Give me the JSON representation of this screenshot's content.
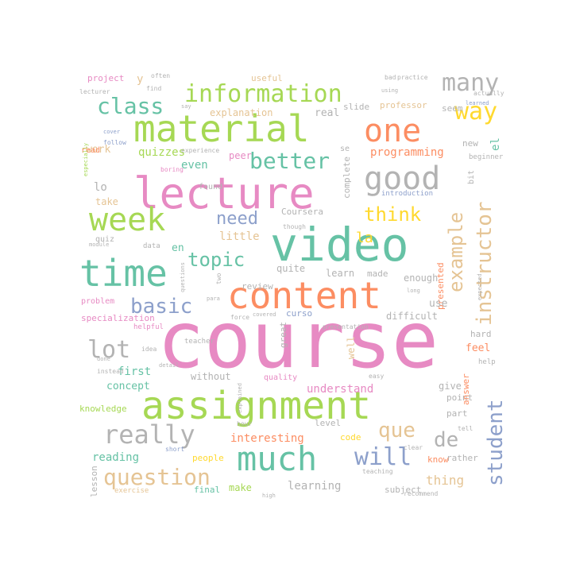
{
  "palette": [
    "#66c2a5",
    "#fc8d62",
    "#8da0cb",
    "#e78ac3",
    "#a6d854",
    "#ffd92f",
    "#e5c494",
    "#b3b3b3"
  ],
  "words": [
    {
      "text": "course",
      "color": "#e78ac3"
    },
    {
      "text": "video",
      "color": "#66c2a5"
    },
    {
      "text": "lecture",
      "color": "#e78ac3"
    },
    {
      "text": "assignment",
      "color": "#a6d854"
    },
    {
      "text": "material",
      "color": "#a6d854"
    },
    {
      "text": "content",
      "color": "#fc8d62"
    },
    {
      "text": "time",
      "color": "#66c2a5"
    },
    {
      "text": "week",
      "color": "#a6d854"
    },
    {
      "text": "much",
      "color": "#66c2a5"
    },
    {
      "text": "one",
      "color": "#fc8d62"
    },
    {
      "text": "good",
      "color": "#b3b3b3"
    },
    {
      "text": "information",
      "color": "#a6d854"
    },
    {
      "text": "really",
      "color": "#b3b3b3"
    },
    {
      "text": "instructor",
      "color": "#e5c494"
    },
    {
      "text": "student",
      "color": "#8da0cb"
    },
    {
      "text": "class",
      "color": "#66c2a5"
    },
    {
      "text": "better",
      "color": "#66c2a5"
    },
    {
      "text": "example",
      "color": "#e5c494"
    },
    {
      "text": "question",
      "color": "#e5c494"
    },
    {
      "text": "many",
      "color": "#b3b3b3"
    },
    {
      "text": "way",
      "color": "#ffd92f"
    },
    {
      "text": "think",
      "color": "#ffd92f"
    },
    {
      "text": "need",
      "color": "#8da0cb"
    },
    {
      "text": "topic",
      "color": "#66c2a5"
    },
    {
      "text": "basic",
      "color": "#8da0cb"
    },
    {
      "text": "lot",
      "color": "#b3b3b3"
    },
    {
      "text": "will",
      "color": "#8da0cb"
    },
    {
      "text": "que",
      "color": "#e5c494"
    },
    {
      "text": "de",
      "color": "#b3b3b3"
    },
    {
      "text": "programming",
      "color": "#fc8d62"
    },
    {
      "text": "quizzes",
      "color": "#a6d854"
    },
    {
      "text": "even",
      "color": "#66c2a5"
    },
    {
      "text": "work",
      "color": "#e5c494"
    },
    {
      "text": "explanation",
      "color": "#e5c494"
    },
    {
      "text": "professor",
      "color": "#e5c494"
    },
    {
      "text": "project",
      "color": "#e78ac3"
    },
    {
      "text": "useful",
      "color": "#e5c494"
    },
    {
      "text": "real",
      "color": "#b3b3b3"
    },
    {
      "text": "slide",
      "color": "#b3b3b3"
    },
    {
      "text": "seem",
      "color": "#b3b3b3"
    },
    {
      "text": "new",
      "color": "#b3b3b3"
    },
    {
      "text": "el",
      "color": "#66c2a5"
    },
    {
      "text": "read",
      "color": "#fc8d62"
    },
    {
      "text": "peer",
      "color": "#e78ac3"
    },
    {
      "text": "complete",
      "color": "#b3b3b3"
    },
    {
      "text": "la",
      "color": "#ffd92f"
    },
    {
      "text": "lo",
      "color": "#b3b3b3"
    },
    {
      "text": "take",
      "color": "#e5c494"
    },
    {
      "text": "en",
      "color": "#66c2a5"
    },
    {
      "text": "little",
      "color": "#e5c494"
    },
    {
      "text": "quite",
      "color": "#b3b3b3"
    },
    {
      "text": "review",
      "color": "#b3b3b3"
    },
    {
      "text": "learn",
      "color": "#b3b3b3"
    },
    {
      "text": "made",
      "color": "#b3b3b3"
    },
    {
      "text": "enough",
      "color": "#b3b3b3"
    },
    {
      "text": "presented",
      "color": "#fc8d62"
    },
    {
      "text": "use",
      "color": "#b3b3b3"
    },
    {
      "text": "difficult",
      "color": "#b3b3b3"
    },
    {
      "text": "specialization",
      "color": "#e78ac3"
    },
    {
      "text": "problem",
      "color": "#e78ac3"
    },
    {
      "text": "Coursera",
      "color": "#b3b3b3"
    },
    {
      "text": "curso",
      "color": "#8da0cb"
    },
    {
      "text": "hard",
      "color": "#b3b3b3"
    },
    {
      "text": "feel",
      "color": "#fc8d62"
    },
    {
      "text": "first",
      "color": "#66c2a5"
    },
    {
      "text": "concept",
      "color": "#66c2a5"
    },
    {
      "text": "understand",
      "color": "#e78ac3"
    },
    {
      "text": "quality",
      "color": "#e78ac3"
    },
    {
      "text": "give",
      "color": "#b3b3b3"
    },
    {
      "text": "point",
      "color": "#b3b3b3"
    },
    {
      "text": "without",
      "color": "#b3b3b3"
    },
    {
      "text": "answer",
      "color": "#fc8d62"
    },
    {
      "text": "knowledge",
      "color": "#a6d854"
    },
    {
      "text": "level",
      "color": "#b3b3b3"
    },
    {
      "text": "part",
      "color": "#b3b3b3"
    },
    {
      "text": "interesting",
      "color": "#fc8d62"
    },
    {
      "text": "code",
      "color": "#ffd92f"
    },
    {
      "text": "reading",
      "color": "#66c2a5"
    },
    {
      "text": "people",
      "color": "#ffd92f"
    },
    {
      "text": "rather",
      "color": "#b3b3b3"
    },
    {
      "text": "know",
      "color": "#fc8d62"
    },
    {
      "text": "learning",
      "color": "#b3b3b3"
    },
    {
      "text": "thing",
      "color": "#e5c494"
    },
    {
      "text": "make",
      "color": "#a6d854"
    },
    {
      "text": "final",
      "color": "#66c2a5"
    },
    {
      "text": "subject",
      "color": "#b3b3b3"
    },
    {
      "text": "lesson",
      "color": "#b3b3b3"
    },
    {
      "text": "exercise",
      "color": "#e5c494"
    },
    {
      "text": "data",
      "color": "#b3b3b3"
    },
    {
      "text": "quiz",
      "color": "#b3b3b3"
    },
    {
      "text": "found",
      "color": "#b3b3b3"
    },
    {
      "text": "bit",
      "color": "#b3b3b3"
    },
    {
      "text": "beginner",
      "color": "#b3b3b3"
    },
    {
      "text": "introduction",
      "color": "#8da0cb"
    },
    {
      "text": "boring",
      "color": "#e78ac3"
    },
    {
      "text": "follow",
      "color": "#8da0cb"
    },
    {
      "text": "experience",
      "color": "#b3b3b3"
    },
    {
      "text": "cover",
      "color": "#8da0cb"
    },
    {
      "text": "though",
      "color": "#b3b3b3"
    },
    {
      "text": "y",
      "color": "#e5c494"
    },
    {
      "text": "se",
      "color": "#b3b3b3"
    },
    {
      "text": "great",
      "color": "#b3b3b3"
    },
    {
      "text": "well",
      "color": "#e5c494"
    },
    {
      "text": "helpful",
      "color": "#e78ac3"
    },
    {
      "text": "teacher",
      "color": "#b3b3b3"
    },
    {
      "text": "help",
      "color": "#b3b3b3"
    },
    {
      "text": "instead",
      "color": "#b3b3b3"
    },
    {
      "text": "done",
      "color": "#b3b3b3"
    },
    {
      "text": "idea",
      "color": "#b3b3b3"
    },
    {
      "text": "detail",
      "color": "#b3b3b3"
    },
    {
      "text": "short",
      "color": "#8da0cb"
    },
    {
      "text": "clear",
      "color": "#b3b3b3"
    },
    {
      "text": "teaching",
      "color": "#b3b3b3"
    },
    {
      "text": "recommend",
      "color": "#b3b3b3"
    },
    {
      "text": "high",
      "color": "#b3b3b3"
    },
    {
      "text": "para",
      "color": "#b3b3b3"
    },
    {
      "text": "often",
      "color": "#b3b3b3"
    },
    {
      "text": "practice",
      "color": "#b3b3b3"
    },
    {
      "text": "actually",
      "color": "#b3b3b3"
    },
    {
      "text": "learned",
      "color": "#8da0cb"
    },
    {
      "text": "lecturer",
      "color": "#b3b3b3"
    },
    {
      "text": "using",
      "color": "#b3b3b3"
    },
    {
      "text": "bad",
      "color": "#b3b3b3"
    },
    {
      "text": "find",
      "color": "#b3b3b3"
    },
    {
      "text": "say",
      "color": "#b3b3b3"
    },
    {
      "text": "especially",
      "color": "#a6d854"
    },
    {
      "text": "module",
      "color": "#b3b3b3"
    },
    {
      "text": "covered",
      "color": "#b3b3b3"
    },
    {
      "text": "presentation",
      "color": "#b3b3b3"
    },
    {
      "text": "hour",
      "color": "#b3b3b3"
    },
    {
      "text": "tell",
      "color": "#b3b3b3"
    },
    {
      "text": "explained",
      "color": "#b3b3b3"
    },
    {
      "text": "easy",
      "color": "#b3b3b3"
    },
    {
      "text": "two",
      "color": "#b3b3b3"
    },
    {
      "text": "force",
      "color": "#b3b3b3"
    },
    {
      "text": "questions",
      "color": "#b3b3b3"
    },
    {
      "text": "expected",
      "color": "#b3b3b3"
    },
    {
      "text": "long",
      "color": "#b3b3b3"
    }
  ]
}
